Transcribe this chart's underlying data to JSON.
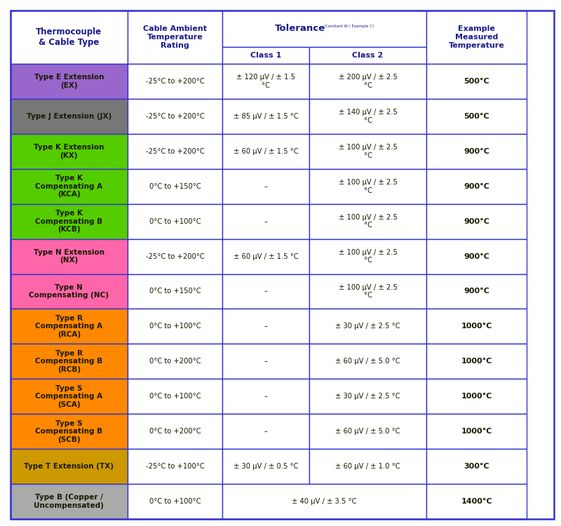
{
  "header_text_color": "#1a1a8c",
  "border_color": "#3333cc",
  "col_props": [
    0.215,
    0.175,
    0.16,
    0.215,
    0.185
  ],
  "headers": [
    "Thermocouple\n& Cable Type",
    "Cable Ambient\nTemperature\nRating",
    "Class 1",
    "Class 2",
    "Example\nMeasured\nTemperature"
  ],
  "tolerance_header": "Tolerance",
  "tolerance_superscript": "(Constant W / Example C)",
  "rows": [
    {
      "name": "Type E Extension\n(EX)",
      "bg": "#9966cc",
      "temp_range": "-25°C to +200°C",
      "class1": "± 120 μV / ± 1.5\n°C",
      "class2": "± 200 μV / ± 2.5\n°C",
      "example": "500°C"
    },
    {
      "name": "Type J Extension (JX)",
      "bg": "#777777",
      "temp_range": "-25°C to +200°C",
      "class1": "± 85 μV / ± 1.5 °C",
      "class2": "± 140 μV / ± 2.5\n°C",
      "example": "500°C"
    },
    {
      "name": "Type K Extension\n(KX)",
      "bg": "#55cc00",
      "temp_range": "-25°C to +200°C",
      "class1": "± 60 μV / ± 1.5 °C",
      "class2": "± 100 μV / ± 2.5\n°C",
      "example": "900°C"
    },
    {
      "name": "Type K\nCompensating A\n(KCA)",
      "bg": "#55cc00",
      "temp_range": "0°C to +150°C",
      "class1": "–",
      "class2": "± 100 μV / ± 2.5\n°C",
      "example": "900°C"
    },
    {
      "name": "Type K\nCompensating B\n(KCB)",
      "bg": "#55cc00",
      "temp_range": "0°C to +100°C",
      "class1": "–",
      "class2": "± 100 μV / ± 2.5\n°C",
      "example": "900°C"
    },
    {
      "name": "Type N Extension\n(NX)",
      "bg": "#ff66aa",
      "temp_range": "-25°C to +200°C",
      "class1": "± 60 μV / ± 1.5 °C",
      "class2": "± 100 μV / ± 2.5\n°C",
      "example": "900°C"
    },
    {
      "name": "Type N\nCompensating (NC)",
      "bg": "#ff66aa",
      "temp_range": "0°C to +150°C",
      "class1": "–",
      "class2": "± 100 μV / ± 2.5\n°C",
      "example": "900°C"
    },
    {
      "name": "Type R\nCompensating A\n(RCA)",
      "bg": "#ff8800",
      "temp_range": "0°C to +100°C",
      "class1": "–",
      "class2": "± 30 μV / ± 2.5 °C",
      "example": "1000°C"
    },
    {
      "name": "Type R\nCompensating B\n(RCB)",
      "bg": "#ff8800",
      "temp_range": "0°C to +200°C",
      "class1": "–",
      "class2": "± 60 μV / ± 5.0 °C",
      "example": "1000°C"
    },
    {
      "name": "Type S\nCompensating A\n(SCA)",
      "bg": "#ff8800",
      "temp_range": "0°C to +100°C",
      "class1": "–",
      "class2": "± 30 μV / ± 2.5 °C",
      "example": "1000°C"
    },
    {
      "name": "Type S\nCompensating B\n(SCB)",
      "bg": "#ff8800",
      "temp_range": "0°C to +200°C",
      "class1": "–",
      "class2": "± 60 μV / ± 5.0 °C",
      "example": "1000°C"
    },
    {
      "name": "Type T Extension (TX)",
      "bg": "#cc9900",
      "temp_range": "-25°C to +100°C",
      "class1": "± 30 μV / ± 0.5 °C",
      "class2": "± 60 μV / ± 1.0 °C",
      "example": "300°C"
    },
    {
      "name": "Type B (Copper /\nUncompensated)",
      "bg": "#aaaaaa",
      "temp_range": "0°C to +100°C",
      "class1": "",
      "class2": "± 40 μV / ± 3.5 °C",
      "class2_span": true,
      "example": "1400°C"
    }
  ]
}
